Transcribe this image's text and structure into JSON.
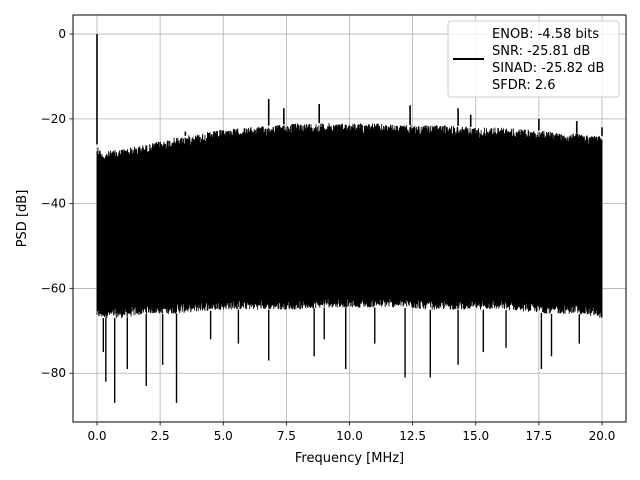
{
  "chart_data": {
    "type": "line",
    "xlabel": "Frequency [MHz]",
    "ylabel": "PSD [dB]",
    "xlim": [
      -0.95,
      20.95
    ],
    "ylim": [
      -91.5,
      4.5
    ],
    "xticks": [
      0.0,
      2.5,
      5.0,
      7.5,
      10.0,
      12.5,
      15.0,
      17.5,
      20.0
    ],
    "xtick_labels": [
      "0.0",
      "2.5",
      "5.0",
      "7.5",
      "10.0",
      "12.5",
      "15.0",
      "17.5",
      "20.0"
    ],
    "yticks": [
      0,
      -20,
      -40,
      -60,
      -80
    ],
    "ytick_labels": [
      "0",
      "−20",
      "−40",
      "−60",
      "−80"
    ],
    "grid": true,
    "line_color": "#000000",
    "legend_location": "top-right",
    "legend": {
      "lines": [
        "ENOB: -4.58 bits",
        "SNR: -25.81 dB",
        "SINAD: -25.82 dB",
        "SFDR: 2.6"
      ]
    },
    "series": [
      {
        "note": "dense noise-floor PSD trace",
        "upper_envelope": {
          "x": [
            0.0,
            0.2,
            0.5,
            1.0,
            2.0,
            3.0,
            4.0,
            5.0,
            6.0,
            7.0,
            8.0,
            9.0,
            10.0,
            11.0,
            12.0,
            13.0,
            14.0,
            15.0,
            16.0,
            17.0,
            18.0,
            19.0,
            20.0
          ],
          "y": [
            -26,
            -28,
            -27.5,
            -27,
            -26,
            -24.5,
            -23.5,
            -22.5,
            -22,
            -21.5,
            -21,
            -21,
            -21,
            -21,
            -21.5,
            -21.5,
            -21.5,
            -22,
            -22,
            -22.5,
            -23,
            -23.5,
            -24
          ]
        },
        "lower_envelope": {
          "x": [
            0.0,
            1.0,
            2.0,
            3.0,
            4.0,
            5.0,
            6.0,
            7.0,
            8.0,
            9.0,
            10.0,
            11.0,
            12.0,
            13.0,
            14.0,
            15.0,
            16.0,
            17.0,
            18.0,
            19.0,
            20.0
          ],
          "y": [
            -67,
            -67,
            -66,
            -66,
            -65.5,
            -65,
            -65,
            -65,
            -65,
            -64.5,
            -64.5,
            -64.5,
            -64.5,
            -65,
            -65,
            -65,
            -65,
            -65.5,
            -66,
            -66,
            -67
          ]
        },
        "peaks": [
          {
            "x": 0.0,
            "y": 0.0
          },
          {
            "x": 6.8,
            "y": -15.3
          },
          {
            "x": 7.4,
            "y": -17.5
          },
          {
            "x": 8.8,
            "y": -16.5
          },
          {
            "x": 12.4,
            "y": -16.8
          },
          {
            "x": 14.3,
            "y": -17.5
          },
          {
            "x": 14.8,
            "y": -19.0
          },
          {
            "x": 3.5,
            "y": -23.0
          },
          {
            "x": 17.5,
            "y": -20.0
          },
          {
            "x": 19.0,
            "y": -20.5
          },
          {
            "x": 20.0,
            "y": -22.0
          }
        ],
        "dips": [
          {
            "x": 0.25,
            "y": -75
          },
          {
            "x": 0.35,
            "y": -82
          },
          {
            "x": 0.7,
            "y": -87
          },
          {
            "x": 1.2,
            "y": -79
          },
          {
            "x": 1.95,
            "y": -83
          },
          {
            "x": 2.6,
            "y": -78
          },
          {
            "x": 3.15,
            "y": -87
          },
          {
            "x": 4.5,
            "y": -72
          },
          {
            "x": 5.6,
            "y": -73
          },
          {
            "x": 6.8,
            "y": -77
          },
          {
            "x": 8.6,
            "y": -76
          },
          {
            "x": 9.0,
            "y": -72
          },
          {
            "x": 9.85,
            "y": -79
          },
          {
            "x": 11.0,
            "y": -73
          },
          {
            "x": 12.2,
            "y": -81
          },
          {
            "x": 13.2,
            "y": -81
          },
          {
            "x": 14.3,
            "y": -78
          },
          {
            "x": 15.3,
            "y": -75
          },
          {
            "x": 16.2,
            "y": -74
          },
          {
            "x": 17.6,
            "y": -79
          },
          {
            "x": 18.0,
            "y": -76
          },
          {
            "x": 19.1,
            "y": -73
          }
        ]
      }
    ]
  }
}
